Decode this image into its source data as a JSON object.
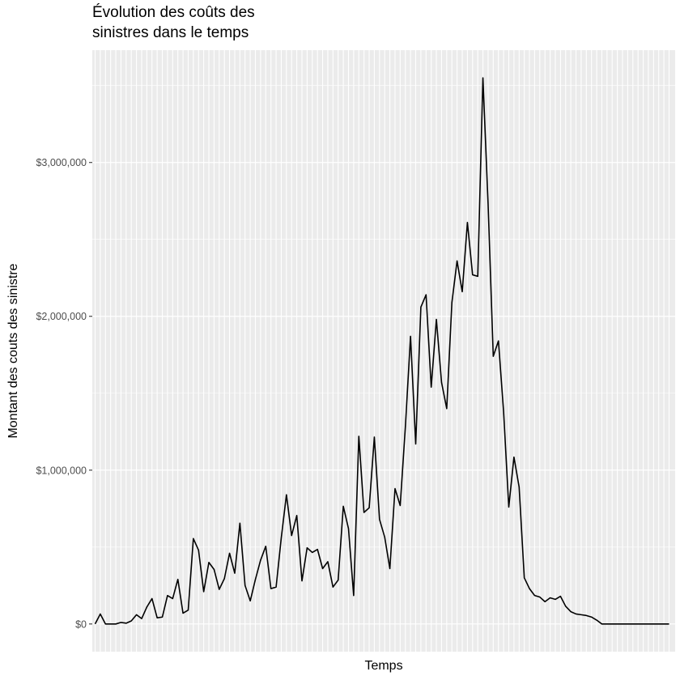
{
  "chart_data": {
    "type": "line",
    "title_lines": [
      "Évolution des coûts des",
      "sinistres dans le temps"
    ],
    "xlabel": "Temps",
    "ylabel": "Montant des couts des sinistre",
    "y_ticks": [
      0,
      1000000,
      2000000,
      3000000
    ],
    "y_tick_labels": [
      "$0",
      "$1,000,000",
      "$2,000,000",
      "$3,000,000"
    ],
    "ylim": [
      -180000,
      3730000
    ],
    "grid": true,
    "x_tick_labels_shown": false,
    "panel_color": "#ebebeb",
    "line_color": "#000000",
    "series": [
      {
        "values": [
          0,
          65000,
          0,
          0,
          0,
          10000,
          5000,
          20000,
          60000,
          35000,
          110000,
          165000,
          40000,
          45000,
          185000,
          165000,
          290000,
          70000,
          90000,
          555000,
          480000,
          210000,
          400000,
          355000,
          225000,
          295000,
          460000,
          330000,
          655000,
          250000,
          150000,
          290000,
          415000,
          505000,
          230000,
          240000,
          560000,
          840000,
          575000,
          705000,
          280000,
          495000,
          465000,
          485000,
          360000,
          405000,
          240000,
          285000,
          765000,
          620000,
          185000,
          1220000,
          725000,
          755000,
          1215000,
          680000,
          565000,
          360000,
          880000,
          770000,
          1280000,
          1870000,
          1170000,
          2060000,
          2140000,
          1540000,
          1980000,
          1570000,
          1400000,
          2090000,
          2360000,
          2160000,
          2610000,
          2270000,
          2260000,
          3550000,
          2730000,
          1740000,
          1840000,
          1380000,
          760000,
          1085000,
          890000,
          300000,
          230000,
          185000,
          175000,
          145000,
          170000,
          160000,
          180000,
          115000,
          80000,
          65000,
          60000,
          55000,
          45000,
          25000,
          0,
          0,
          0,
          0,
          0,
          0,
          0,
          0,
          0,
          0,
          0,
          0,
          0,
          0
        ]
      }
    ]
  }
}
